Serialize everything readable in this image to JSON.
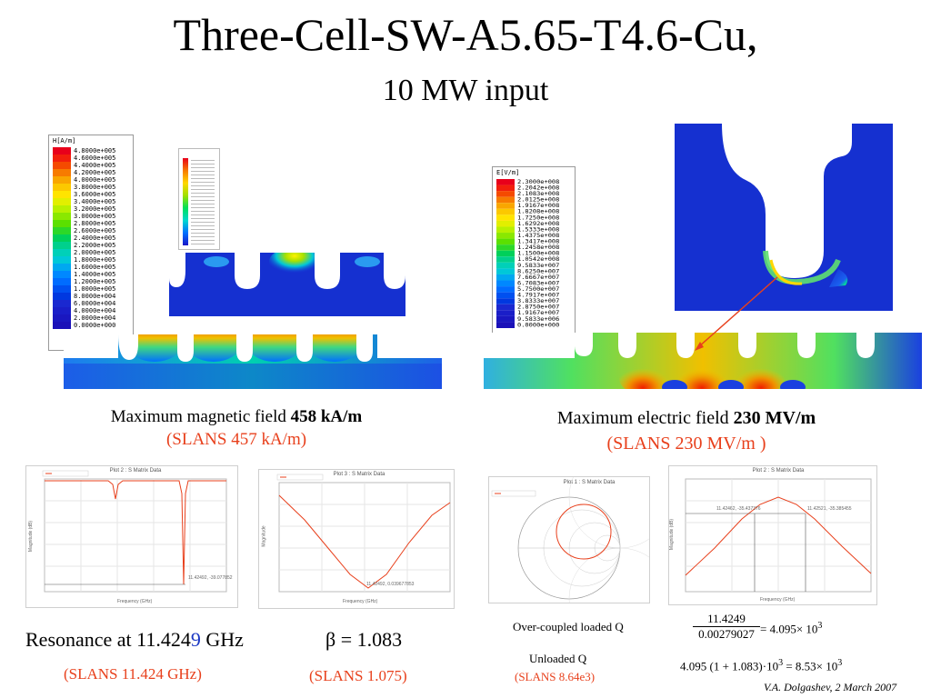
{
  "title": {
    "line1": "Three-Cell-SW-A5.65-T4.6-Cu,",
    "line2": "10 MW input"
  },
  "magnetic": {
    "legend_title": "H[A/m]",
    "legend_values": [
      "4.8000e+005",
      "4.6000e+005",
      "4.4000e+005",
      "4.2000e+005",
      "4.0000e+005",
      "3.8000e+005",
      "3.6000e+005",
      "3.4000e+005",
      "3.2000e+005",
      "3.0000e+005",
      "2.8000e+005",
      "2.6000e+005",
      "2.4000e+005",
      "2.2000e+005",
      "2.0000e+005",
      "1.8000e+005",
      "1.6000e+005",
      "1.4000e+005",
      "1.2000e+005",
      "1.0000e+005",
      "8.0000e+004",
      "6.0000e+004",
      "4.0000e+004",
      "2.0000e+004",
      "0.0000e+000"
    ],
    "caption_prefix": "Maximum magnetic field ",
    "caption_value": "458 kA/m",
    "slans": "(SLANS 457 kA/m)"
  },
  "electric": {
    "legend_title": "E[V/m]",
    "legend_values": [
      "2.3000e+008",
      "2.2042e+008",
      "2.1083e+008",
      "2.0125e+008",
      "1.9167e+008",
      "1.8208e+008",
      "1.7250e+008",
      "1.6292e+008",
      "1.5333e+008",
      "1.4375e+008",
      "1.3417e+008",
      "1.2458e+008",
      "1.1500e+008",
      "1.0542e+008",
      "9.5833e+007",
      "8.6250e+007",
      "7.6667e+007",
      "6.7083e+007",
      "5.7500e+007",
      "4.7917e+007",
      "3.8333e+007",
      "2.8750e+007",
      "1.9167e+007",
      "9.5833e+006",
      "0.0000e+000"
    ],
    "caption_prefix": "Maximum electric field ",
    "caption_value": "230 MV/m",
    "slans": "(SLANS 230 MV/m )"
  },
  "plots": {
    "p1_title": "Plot 2 : S Matrix Data",
    "p1_marker": "11.42492, -39.077852",
    "p2_title": "Plot 3 : S Matrix Data",
    "p2_marker": "11.42492, 0.039677853",
    "p3_title": "Plot 1 : S Matrix Data",
    "p4_title": "Plot 2 : S Matrix Data",
    "p4_marker_left": "11.42462, -35.437376",
    "p4_marker_right": "11.42521, -35.385455",
    "freq_label": "Frequency (GHz)",
    "mag_db_label": "Magnitude (dB)",
    "mag_label": "Magnitude"
  },
  "bottom": {
    "resonance_prefix": "Resonance at 11.424",
    "resonance_digit": "9",
    "resonance_unit": " GHz",
    "resonance_slans": "(SLANS 11.424 GHz)",
    "beta": "β = 1.083",
    "beta_slans": "(SLANS 1.075)",
    "loaded_q_label": "Over-coupled loaded Q",
    "loaded_q_num": "11.4249",
    "loaded_q_den": "0.00279027",
    "loaded_q_result": "= 4.095× 10",
    "loaded_q_exp": "3",
    "unloaded_q_label": "Unloaded Q",
    "unloaded_q_expr": "4.095 (1 + 1.083)·10",
    "unloaded_q_exp1": "3",
    "unloaded_q_result": " = 8.53× 10",
    "unloaded_q_exp2": "3",
    "unloaded_q_slans": "(SLANS 8.64e3)",
    "credit": "V.A. Dolgashev, 2 March 2007"
  }
}
